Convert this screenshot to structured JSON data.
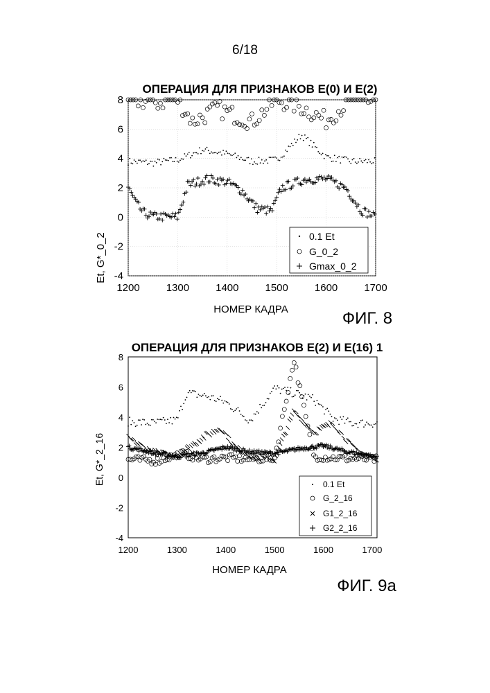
{
  "page": {
    "number": "6/18"
  },
  "chart_data": [
    {
      "id": "fig8",
      "type": "scatter",
      "title": "ОПЕРАЦИЯ ДЛЯ ПРИЗНАКОВ Е(0) И Е(2)",
      "figure_label": "ФИГ. 8",
      "xlabel": "НОМЕР КАДРА",
      "ylabel": "Et, G*_0_2",
      "xlim": [
        1200,
        1700
      ],
      "ylim": [
        -4,
        8
      ],
      "xticks": [
        "1200",
        "1300",
        "1400",
        "1500",
        "1600",
        "1700"
      ],
      "yticks": [
        "-4",
        "-2",
        "0",
        "2",
        "4",
        "6",
        "8"
      ],
      "grid": true,
      "legend_position": "bottom-right",
      "series": [
        {
          "name": "0.1 Et",
          "marker": "dot",
          "description_points": [
            [
              1200,
              3.8
            ],
            [
              1250,
              3.7
            ],
            [
              1300,
              3.9
            ],
            [
              1350,
              4.6
            ],
            [
              1400,
              4.3
            ],
            [
              1450,
              3.8
            ],
            [
              1500,
              3.9
            ],
            [
              1550,
              5.6
            ],
            [
              1600,
              4.1
            ],
            [
              1650,
              3.8
            ],
            [
              1700,
              3.8
            ]
          ]
        },
        {
          "name": "G_0_2",
          "marker": "circle",
          "description_points": [
            [
              1203,
              8
            ],
            [
              1260,
              7.8
            ],
            [
              1300,
              8
            ],
            [
              1330,
              6.5
            ],
            [
              1380,
              7.4
            ],
            [
              1450,
              6.5
            ],
            [
              1500,
              8
            ],
            [
              1550,
              7.5
            ],
            [
              1600,
              6.6
            ],
            [
              1650,
              8
            ],
            [
              1700,
              8
            ]
          ]
        },
        {
          "name": "Gmax_0_2",
          "marker": "plus",
          "description_points": [
            [
              1200,
              2
            ],
            [
              1215,
              1.0
            ],
            [
              1230,
              0.3
            ],
            [
              1250,
              0.05
            ],
            [
              1300,
              0
            ],
            [
              1320,
              2.2
            ],
            [
              1360,
              2.6
            ],
            [
              1400,
              2.4
            ],
            [
              1430,
              1.8
            ],
            [
              1460,
              0.6
            ],
            [
              1490,
              0.4
            ],
            [
              1510,
              2.0
            ],
            [
              1560,
              2.6
            ],
            [
              1600,
              2.6
            ],
            [
              1640,
              2.0
            ],
            [
              1670,
              0.5
            ],
            [
              1700,
              0
            ]
          ]
        }
      ],
      "legend": [
        "0.1 Et",
        "G_0_2",
        "Gmax_0_2"
      ]
    },
    {
      "id": "fig9a",
      "type": "scatter",
      "title": "ОПЕРАЦИЯ ДЛЯ ПРИЗНАКОВ Е(2) И Е(16) 1",
      "figure_label": "ФИГ. 9а",
      "xlabel": "НОМЕР КАДРА",
      "ylabel": "Et, G*_2_16",
      "xlim": [
        1200,
        1710
      ],
      "ylim": [
        -4,
        8
      ],
      "xticks": [
        "1200",
        "1300",
        "1400",
        "1500",
        "1600",
        "1700"
      ],
      "yticks": [
        "-4",
        "-2",
        "0",
        "2",
        "4",
        "6",
        "8"
      ],
      "grid": false,
      "legend_position": "bottom-right",
      "series": [
        {
          "name": "0.1 Et",
          "marker": "dot",
          "description_points": [
            [
              1200,
              3.7
            ],
            [
              1250,
              3.6
            ],
            [
              1300,
              3.8
            ],
            [
              1320,
              5.6
            ],
            [
              1360,
              5.4
            ],
            [
              1400,
              5.0
            ],
            [
              1450,
              3.8
            ],
            [
              1500,
              5.9
            ],
            [
              1540,
              5.6
            ],
            [
              1580,
              5.2
            ],
            [
              1620,
              3.9
            ],
            [
              1660,
              3.6
            ],
            [
              1700,
              3.6
            ]
          ]
        },
        {
          "name": "G_2_16",
          "marker": "circle",
          "description_points": [
            [
              1200,
              1.2
            ],
            [
              1260,
              1.1
            ],
            [
              1310,
              1.6
            ],
            [
              1350,
              1.2
            ],
            [
              1400,
              1.3
            ],
            [
              1450,
              1.2
            ],
            [
              1500,
              1.3
            ],
            [
              1540,
              7.8
            ],
            [
              1580,
              1.4
            ],
            [
              1620,
              1.3
            ],
            [
              1700,
              1.2
            ]
          ]
        },
        {
          "name": "G1_2_16",
          "marker": "x",
          "description_points": [
            [
              1200,
              2.6
            ],
            [
              1250,
              1.7
            ],
            [
              1300,
              1.4
            ],
            [
              1350,
              2.6
            ],
            [
              1390,
              3.3
            ],
            [
              1420,
              2.0
            ],
            [
              1460,
              1.3
            ],
            [
              1500,
              1.2
            ],
            [
              1540,
              4.4
            ],
            [
              1580,
              3.0
            ],
            [
              1620,
              3.6
            ],
            [
              1660,
              2.0
            ],
            [
              1700,
              1.3
            ]
          ]
        },
        {
          "name": "G2_2_16",
          "marker": "plus",
          "description_points": [
            [
              1200,
              2.0
            ],
            [
              1260,
              1.6
            ],
            [
              1300,
              1.4
            ],
            [
              1350,
              1.6
            ],
            [
              1400,
              2.0
            ],
            [
              1450,
              1.7
            ],
            [
              1500,
              1.6
            ],
            [
              1550,
              1.9
            ],
            [
              1600,
              2.1
            ],
            [
              1650,
              1.7
            ],
            [
              1700,
              1.4
            ]
          ]
        }
      ],
      "legend": [
        "0.1 Et",
        "G_2_16",
        "G1_2_16",
        "G2_2_16"
      ]
    }
  ]
}
